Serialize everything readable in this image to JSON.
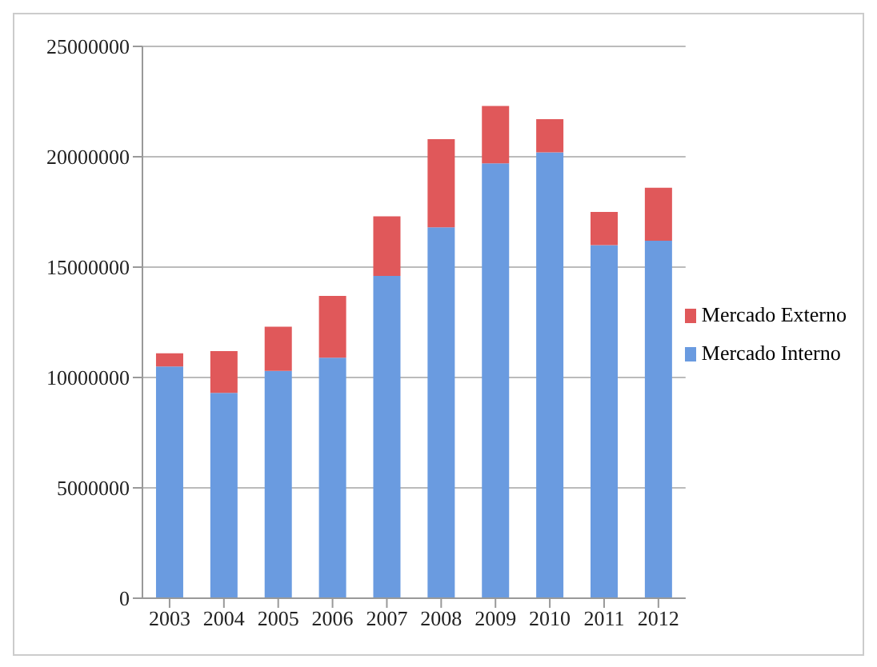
{
  "chart_data": {
    "type": "bar",
    "stacked": true,
    "categories": [
      "2003",
      "2004",
      "2005",
      "2006",
      "2007",
      "2008",
      "2009",
      "2010",
      "2011",
      "2012"
    ],
    "series": [
      {
        "name": "Mercado Interno",
        "color": "#6a9be0",
        "values": [
          10500000,
          9300000,
          10300000,
          10900000,
          14600000,
          16800000,
          19700000,
          20200000,
          16000000,
          16200000
        ]
      },
      {
        "name": "Mercado Externo",
        "color": "#e0585a",
        "values": [
          600000,
          1900000,
          2000000,
          2800000,
          2700000,
          4000000,
          2600000,
          1500000,
          1500000,
          2400000
        ]
      }
    ],
    "ylim": [
      0,
      25000000
    ],
    "yticks": [
      0,
      5000000,
      10000000,
      15000000,
      20000000,
      25000000
    ],
    "grid": "y",
    "legend": "right"
  }
}
